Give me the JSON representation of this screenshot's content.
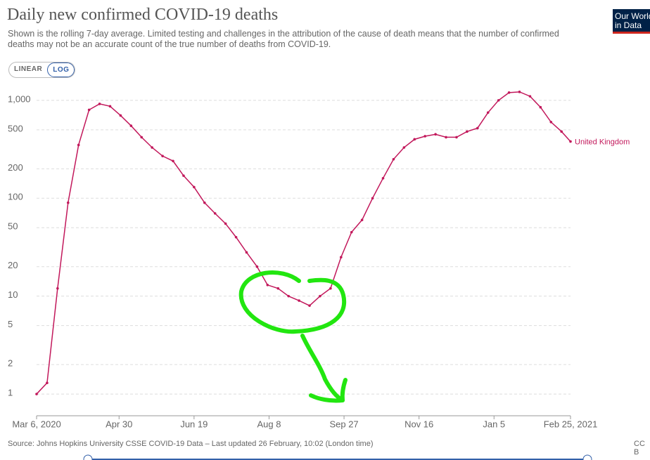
{
  "chart_data": {
    "type": "line",
    "title": "Daily new confirmed COVID-19 deaths",
    "subtitle": "Shown is the rolling 7-day average. Limited testing and challenges in the attribution of the cause of death means that the number of confirmed deaths may not be an accurate count of the true number of deaths from COVID-19.",
    "source": "Source: Johns Hopkins University CSSE COVID-19 Data – Last updated 26 February, 10:02 (London time)",
    "buttons": [
      "LINEAR",
      "LOG"
    ],
    "logo": "Our World in Data",
    "log_scale": true,
    "grid": true,
    "x": [
      "2020-03-06",
      "2020-03-13",
      "2020-03-20",
      "2020-03-27",
      "2020-04-03",
      "2020-04-10",
      "2020-04-17",
      "2020-04-24",
      "2020-05-01",
      "2020-05-08",
      "2020-05-15",
      "2020-05-22",
      "2020-05-29",
      "2020-06-05",
      "2020-06-12",
      "2020-06-19",
      "2020-06-26",
      "2020-07-03",
      "2020-07-10",
      "2020-07-17",
      "2020-07-24",
      "2020-07-31",
      "2020-08-07",
      "2020-08-14",
      "2020-08-21",
      "2020-08-28",
      "2020-09-04",
      "2020-09-11",
      "2020-09-18",
      "2020-09-25",
      "2020-10-02",
      "2020-10-09",
      "2020-10-16",
      "2020-10-23",
      "2020-10-30",
      "2020-11-06",
      "2020-11-13",
      "2020-11-20",
      "2020-11-27",
      "2020-12-04",
      "2020-12-11",
      "2020-12-18",
      "2020-12-25",
      "2021-01-01",
      "2021-01-08",
      "2021-01-15",
      "2021-01-22",
      "2021-01-29",
      "2021-02-05",
      "2021-02-12",
      "2021-02-19",
      "2021-02-25"
    ],
    "series": [
      {
        "name": "United Kingdom",
        "color": "#c2185b",
        "values": [
          1,
          1.3,
          12,
          90,
          350,
          800,
          920,
          870,
          700,
          550,
          420,
          330,
          270,
          240,
          170,
          130,
          90,
          70,
          55,
          40,
          28,
          20,
          13,
          12,
          10,
          9,
          8,
          10,
          12,
          25,
          45,
          60,
          100,
          160,
          250,
          330,
          400,
          430,
          450,
          420,
          420,
          480,
          520,
          750,
          1000,
          1200,
          1220,
          1100,
          850,
          600,
          480,
          380
        ]
      }
    ],
    "xlim": [
      "2020-03-06",
      "2021-02-25"
    ],
    "xticks": [
      {
        "value": "2020-03-06",
        "label": "Mar 6, 2020"
      },
      {
        "value": "2020-04-30",
        "label": "Apr 30"
      },
      {
        "value": "2020-06-19",
        "label": "Jun 19"
      },
      {
        "value": "2020-08-08",
        "label": "Aug 8"
      },
      {
        "value": "2020-09-27",
        "label": "Sep 27"
      },
      {
        "value": "2020-11-16",
        "label": "Nov 16"
      },
      {
        "value": "2021-01-05",
        "label": "Jan 5"
      },
      {
        "value": "2021-02-25",
        "label": "Feb 25, 2021"
      }
    ],
    "ylim": [
      0.6,
      1300
    ],
    "yticks": [
      1,
      2,
      5,
      10,
      20,
      50,
      100,
      200,
      500,
      {
        "value": 1000,
        "label": "1,000"
      }
    ]
  }
}
